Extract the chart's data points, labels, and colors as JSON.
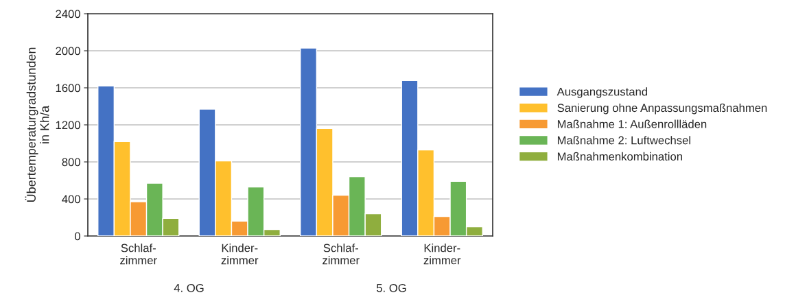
{
  "chart_data": {
    "type": "bar",
    "ylabel": "Übertemperaturgradstunden\nin Kh/a",
    "categories": [
      "Schlaf-\nzimmer",
      "Kinder-\nzimmer",
      "Schlaf-\nzimmer",
      "Kinder-\nzimmer"
    ],
    "series": [
      {
        "name": "Ausgangszustand",
        "color": "#4472c4",
        "values": [
          1620,
          1370,
          2030,
          1680
        ]
      },
      {
        "name": "Sanierung ohne Anpassungsmaßnahmen",
        "color": "#ffc02d",
        "values": [
          1020,
          810,
          1160,
          930
        ]
      },
      {
        "name": "Maßnahme 1: Außenrollläden",
        "color": "#f79a33",
        "values": [
          370,
          160,
          440,
          210
        ]
      },
      {
        "name": "Maßnahme 2: Luftwechsel",
        "color": "#6ab556",
        "values": [
          570,
          530,
          640,
          590
        ]
      },
      {
        "name": "Maßnahmenkombination",
        "color": "#8fae3e",
        "values": [
          190,
          70,
          240,
          100
        ]
      }
    ],
    "annotations": [
      {
        "text": "4. OG"
      },
      {
        "text": "5. OG"
      }
    ],
    "ylim": [
      0,
      2400
    ],
    "yticks": [
      0,
      400,
      800,
      1200,
      1600,
      2000,
      2400
    ],
    "grid": "y",
    "legend": "right"
  }
}
